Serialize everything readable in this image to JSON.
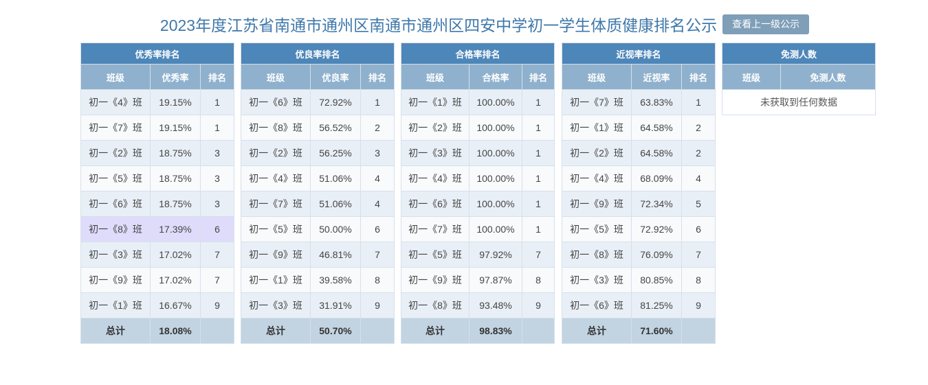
{
  "title": "2023年度江苏省南通市通州区南通市通州区四安中学初一学生体质健康排名公示",
  "up_button": "查看上一级公示",
  "excellent": {
    "title": "优秀率排名",
    "headers": [
      "班级",
      "优秀率",
      "排名"
    ],
    "rows": [
      [
        "初一《4》班",
        "19.15%",
        "1"
      ],
      [
        "初一《7》班",
        "19.15%",
        "1"
      ],
      [
        "初一《2》班",
        "18.75%",
        "3"
      ],
      [
        "初一《5》班",
        "18.75%",
        "3"
      ],
      [
        "初一《6》班",
        "18.75%",
        "3"
      ],
      [
        "初一《8》班",
        "17.39%",
        "6"
      ],
      [
        "初一《3》班",
        "17.02%",
        "7"
      ],
      [
        "初一《9》班",
        "17.02%",
        "7"
      ],
      [
        "初一《1》班",
        "16.67%",
        "9"
      ]
    ],
    "total_label": "总计",
    "total_value": "18.08%"
  },
  "good": {
    "title": "优良率排名",
    "headers": [
      "班级",
      "优良率",
      "排名"
    ],
    "rows": [
      [
        "初一《6》班",
        "72.92%",
        "1"
      ],
      [
        "初一《8》班",
        "56.52%",
        "2"
      ],
      [
        "初一《2》班",
        "56.25%",
        "3"
      ],
      [
        "初一《4》班",
        "51.06%",
        "4"
      ],
      [
        "初一《7》班",
        "51.06%",
        "4"
      ],
      [
        "初一《5》班",
        "50.00%",
        "6"
      ],
      [
        "初一《9》班",
        "46.81%",
        "7"
      ],
      [
        "初一《1》班",
        "39.58%",
        "8"
      ],
      [
        "初一《3》班",
        "31.91%",
        "9"
      ]
    ],
    "total_label": "总计",
    "total_value": "50.70%"
  },
  "pass": {
    "title": "合格率排名",
    "headers": [
      "班级",
      "合格率",
      "排名"
    ],
    "rows": [
      [
        "初一《1》班",
        "100.00%",
        "1"
      ],
      [
        "初一《2》班",
        "100.00%",
        "1"
      ],
      [
        "初一《3》班",
        "100.00%",
        "1"
      ],
      [
        "初一《4》班",
        "100.00%",
        "1"
      ],
      [
        "初一《6》班",
        "100.00%",
        "1"
      ],
      [
        "初一《7》班",
        "100.00%",
        "1"
      ],
      [
        "初一《5》班",
        "97.92%",
        "7"
      ],
      [
        "初一《9》班",
        "97.87%",
        "8"
      ],
      [
        "初一《8》班",
        "93.48%",
        "9"
      ]
    ],
    "total_label": "总计",
    "total_value": "98.83%"
  },
  "myopia": {
    "title": "近视率排名",
    "headers": [
      "班级",
      "近视率",
      "排名"
    ],
    "rows": [
      [
        "初一《7》班",
        "63.83%",
        "1"
      ],
      [
        "初一《1》班",
        "64.58%",
        "2"
      ],
      [
        "初一《2》班",
        "64.58%",
        "2"
      ],
      [
        "初一《4》班",
        "68.09%",
        "4"
      ],
      [
        "初一《9》班",
        "72.34%",
        "5"
      ],
      [
        "初一《5》班",
        "72.92%",
        "6"
      ],
      [
        "初一《8》班",
        "76.09%",
        "7"
      ],
      [
        "初一《3》班",
        "80.85%",
        "8"
      ],
      [
        "初一《6》班",
        "81.25%",
        "9"
      ]
    ],
    "total_label": "总计",
    "total_value": "71.60%"
  },
  "exempt": {
    "title": "免测人数",
    "headers": [
      "班级",
      "免测人数"
    ],
    "empty_text": "未获取到任何数据"
  }
}
